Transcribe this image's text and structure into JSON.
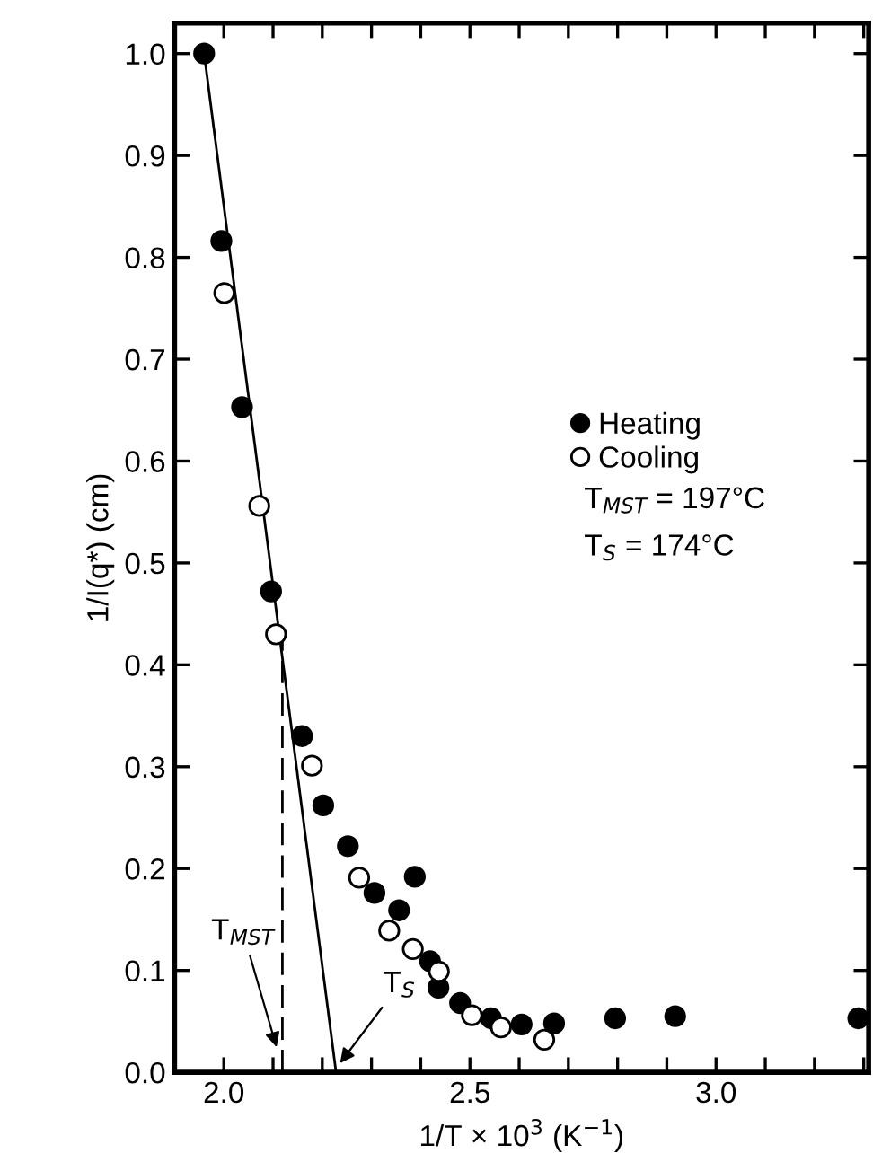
{
  "chart_data": {
    "type": "scatter",
    "xlabel": "1/T × 10$^{3}$ (K$^{−1}$)",
    "ylabel": "1/I(q*) (cm)",
    "series": [
      {
        "name": "Heating",
        "color": "#000000",
        "marker": "circle",
        "x": [
          1.96,
          1.995,
          2.037,
          2.096,
          2.159,
          2.202,
          2.252,
          2.306,
          2.356,
          2.388,
          2.419,
          2.436,
          2.48,
          2.543,
          2.605,
          2.671,
          2.795,
          2.917,
          3.289
        ],
        "values": [
          1.0,
          0.816,
          0.653,
          0.472,
          0.33,
          0.262,
          0.222,
          0.176,
          0.159,
          0.192,
          0.109,
          0.083,
          0.068,
          0.053,
          0.047,
          0.048,
          0.053,
          0.055,
          0.053
        ]
      },
      {
        "name": "Cooling",
        "color": "#ffffff",
        "marker": "circle",
        "x": [
          2.001,
          2.072,
          2.106,
          2.179,
          2.275,
          2.336,
          2.384,
          2.437,
          2.504,
          2.563,
          2.651
        ],
        "values": [
          0.765,
          0.556,
          0.43,
          0.301,
          0.191,
          0.139,
          0.121,
          0.099,
          0.056,
          0.044,
          0.032
        ]
      },
      {
        "type": "line",
        "color": "#000000",
        "line_style": "solid",
        "marker": "none",
        "x": [
          1.96,
          2.228
        ],
        "values": [
          1.0,
          0.0
        ]
      },
      {
        "type": "line",
        "color": "#000000",
        "line_style": "dashed",
        "marker": "none",
        "x": [
          2.119,
          2.119
        ],
        "values": [
          0.0,
          0.43
        ]
      }
    ],
    "annotations": [
      "T$_{MST}$ = 197°C",
      "T$_{S}$ = 174°C",
      {
        "text": "T$_{MST}$",
        "x": 2.11,
        "y": 0.02
      },
      {
        "text": "T$_{S}$",
        "x": 2.23,
        "y": 0.005
      }
    ],
    "xlim": [
      1.9,
      3.31
    ],
    "ylim": [
      0,
      1.03
    ],
    "xticks": [
      {
        "value": 2.0,
        "label": "2.0"
      },
      {
        "value": 2.1,
        "label": null
      },
      {
        "value": 2.2,
        "label": null
      },
      {
        "value": 2.3,
        "label": null
      },
      {
        "value": 2.4,
        "label": null
      },
      {
        "value": 2.5,
        "label": "2.5"
      },
      {
        "value": 2.6,
        "label": null
      },
      {
        "value": 2.7,
        "label": null
      },
      {
        "value": 2.8,
        "label": null
      },
      {
        "value": 2.9,
        "label": null
      },
      {
        "value": 3.0,
        "label": "3.0"
      },
      {
        "value": 3.1,
        "label": null
      },
      {
        "value": 3.2,
        "label": null
      },
      {
        "value": 3.3,
        "label": null
      }
    ],
    "yticks": [
      {
        "value": 0,
        "label": "0.0"
      },
      0.1,
      0.2,
      0.3,
      0.4,
      0.5,
      0.6,
      0.7,
      0.8,
      0.9,
      {
        "value": 1,
        "label": "1.0"
      }
    ],
    "legend": "right",
    "grid": false
  }
}
